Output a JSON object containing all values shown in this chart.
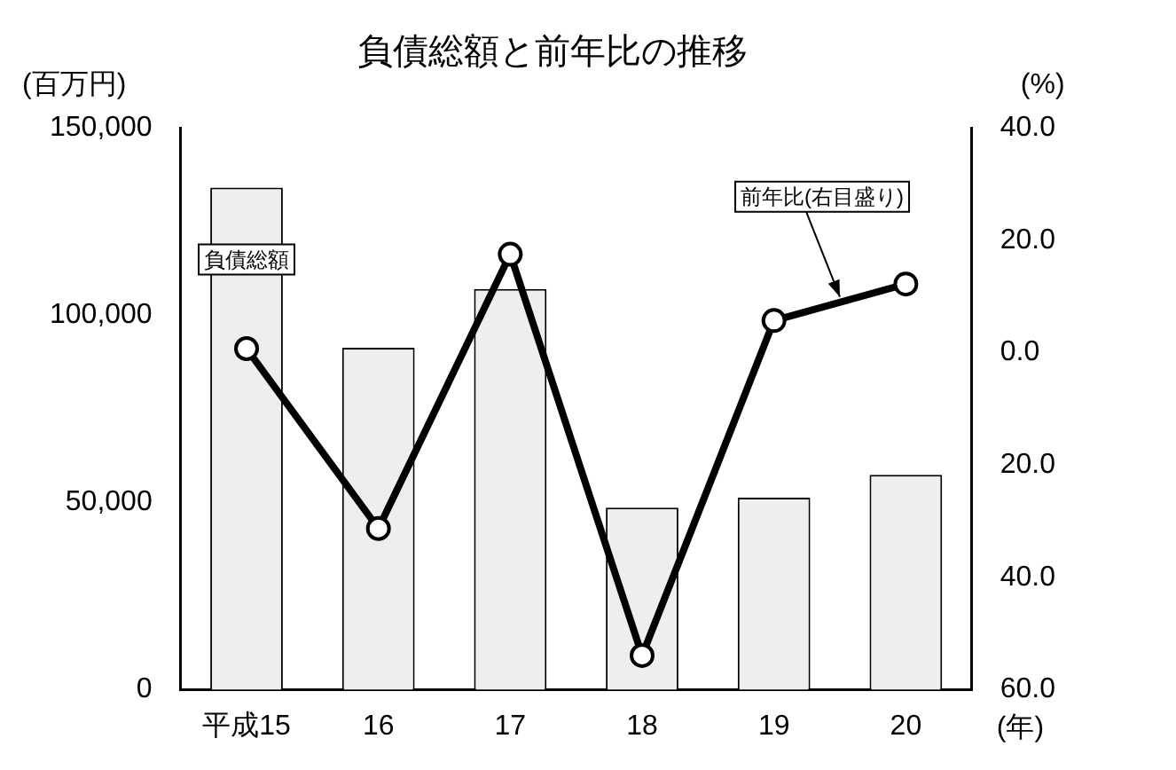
{
  "chart_data": {
    "type": "bar",
    "title": "負債総額と前年比の推移",
    "xlabel": "(年)",
    "ylabel": "(百万円)",
    "y2label": "(%)",
    "categories": [
      "平成15",
      "16",
      "17",
      "18",
      "19",
      "20"
    ],
    "series": [
      {
        "name": "負債総額",
        "color": "#eeeeee",
        "values": [
          134000,
          91300,
          107000,
          48600,
          51300,
          57400
        ]
      },
      {
        "name": "前年比(右目盛り)",
        "type": "line",
        "axis": "y2",
        "color": "#000000",
        "marker": "circle",
        "values": [
          0.7,
          -31.3,
          17.5,
          -53.9,
          5.7,
          12.2
        ]
      }
    ],
    "ylim": [
      0,
      150000
    ],
    "yticks": [
      0,
      {
        "value": 50000,
        "label": "50,000"
      },
      {
        "value": 100000,
        "label": "100,000"
      },
      {
        "value": 150000,
        "label": "150,000"
      }
    ],
    "y2lim": [
      -60,
      40
    ],
    "y2ticks": [
      {
        "value": -60,
        "label": "60.0"
      },
      {
        "value": -40,
        "label": "40.0"
      },
      {
        "value": -20,
        "label": "20.0"
      },
      {
        "value": 0,
        "label": "0.0"
      },
      {
        "value": 20,
        "label": "20.0"
      },
      {
        "value": 40,
        "label": "40.0"
      }
    ],
    "grid": false,
    "legend": false
  }
}
